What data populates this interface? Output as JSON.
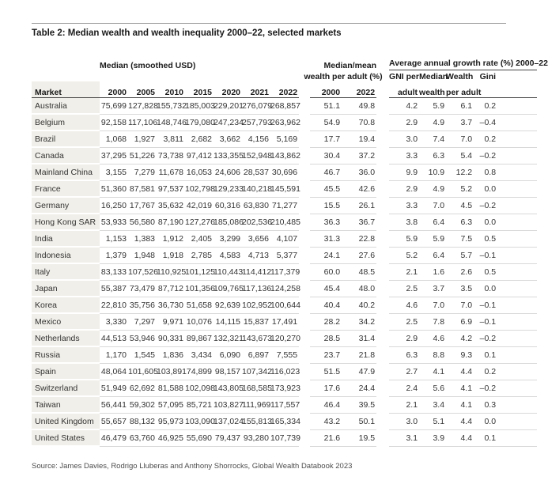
{
  "page": {
    "title": "Table 2: Median wealth and wealth inequality 2000–22, selected markets",
    "source": "Source: James Davies, Rodrigo Lluberas and Anthony Shorrocks, Global Wealth Databook 2023"
  },
  "table": {
    "group_headers": {
      "median_group": "Median (smoothed USD)",
      "median_mean_line1": "Median/mean",
      "median_mean_line2": "wealth per adult (%)",
      "growth_group": "Average annual growth rate (%) 2000–22"
    },
    "column_headers": {
      "market": "Market",
      "median_years": [
        "2000",
        "2005",
        "2010",
        "2015",
        "2020",
        "2021",
        "2022"
      ],
      "median_mean_years": [
        "2000",
        "2022"
      ],
      "growth_line1": [
        "GNI per",
        "Median",
        "Wealth",
        "Gini"
      ],
      "growth_line2": [
        "adult",
        "wealth",
        "per adult",
        ""
      ]
    },
    "rows": [
      {
        "market": "Australia",
        "median": [
          "75,699",
          "127,828",
          "155,732",
          "185,003",
          "229,201",
          "276,079",
          "268,857"
        ],
        "median_mean": [
          "51.1",
          "49.8"
        ],
        "growth": [
          "4.2",
          "5.9",
          "6.1",
          "0.2"
        ]
      },
      {
        "market": "Belgium",
        "median": [
          "92,158",
          "117,106",
          "148,746",
          "179,080",
          "247,234",
          "257,793",
          "263,962"
        ],
        "median_mean": [
          "54.9",
          "70.8"
        ],
        "growth": [
          "2.9",
          "4.9",
          "3.7",
          "–0.4"
        ]
      },
      {
        "market": "Brazil",
        "median": [
          "1,068",
          "1,927",
          "3,811",
          "2,682",
          "3,662",
          "4,156",
          "5,169"
        ],
        "median_mean": [
          "17.7",
          "19.4"
        ],
        "growth": [
          "3.0",
          "7.4",
          "7.0",
          "0.2"
        ]
      },
      {
        "market": "Canada",
        "median": [
          "37,295",
          "51,226",
          "73,738",
          "97,412",
          "133,355",
          "152,948",
          "143,862"
        ],
        "median_mean": [
          "30.4",
          "37.2"
        ],
        "growth": [
          "3.3",
          "6.3",
          "5.4",
          "–0.2"
        ]
      },
      {
        "market": "Mainland China",
        "median": [
          "3,155",
          "7,279",
          "11,678",
          "16,053",
          "24,606",
          "28,537",
          "30,696"
        ],
        "median_mean": [
          "46.7",
          "36.0"
        ],
        "growth": [
          "9.9",
          "10.9",
          "12.2",
          "0.8"
        ]
      },
      {
        "market": "France",
        "median": [
          "51,360",
          "87,581",
          "97,537",
          "102,798",
          "129,233",
          "140,218",
          "145,591"
        ],
        "median_mean": [
          "45.5",
          "42.6"
        ],
        "growth": [
          "2.9",
          "4.9",
          "5.2",
          "0.0"
        ]
      },
      {
        "market": "Germany",
        "median": [
          "16,250",
          "17,767",
          "35,632",
          "42,019",
          "60,316",
          "63,830",
          "71,277"
        ],
        "median_mean": [
          "15.5",
          "26.1"
        ],
        "growth": [
          "3.3",
          "7.0",
          "4.5",
          "–0.2"
        ]
      },
      {
        "market": "Hong Kong SAR",
        "median": [
          "53,933",
          "56,580",
          "87,190",
          "127,276",
          "185,086",
          "202,536",
          "210,485"
        ],
        "median_mean": [
          "36.3",
          "36.7"
        ],
        "growth": [
          "3.8",
          "6.4",
          "6.3",
          "0.0"
        ]
      },
      {
        "market": "India",
        "median": [
          "1,153",
          "1,383",
          "1,912",
          "2,405",
          "3,299",
          "3,656",
          "4,107"
        ],
        "median_mean": [
          "31.3",
          "22.8"
        ],
        "growth": [
          "5.9",
          "5.9",
          "7.5",
          "0.5"
        ]
      },
      {
        "market": "Indonesia",
        "median": [
          "1,379",
          "1,948",
          "1,918",
          "2,785",
          "4,583",
          "4,713",
          "5,377"
        ],
        "median_mean": [
          "24.1",
          "27.6"
        ],
        "growth": [
          "5.2",
          "6.4",
          "5.7",
          "–0.1"
        ]
      },
      {
        "market": "Italy",
        "median": [
          "83,133",
          "107,526",
          "110,925",
          "101,125",
          "110,443",
          "114,412",
          "117,379"
        ],
        "median_mean": [
          "60.0",
          "48.5"
        ],
        "growth": [
          "2.1",
          "1.6",
          "2.6",
          "0.5"
        ]
      },
      {
        "market": "Japan",
        "median": [
          "55,387",
          "73,479",
          "87,712",
          "101,356",
          "109,765",
          "117,136",
          "124,258"
        ],
        "median_mean": [
          "45.4",
          "48.0"
        ],
        "growth": [
          "2.5",
          "3.7",
          "3.5",
          "0.0"
        ]
      },
      {
        "market": "Korea",
        "median": [
          "22,810",
          "35,756",
          "36,730",
          "51,658",
          "92,639",
          "102,952",
          "100,644"
        ],
        "median_mean": [
          "40.4",
          "40.2"
        ],
        "growth": [
          "4.6",
          "7.0",
          "7.0",
          "–0.1"
        ]
      },
      {
        "market": "Mexico",
        "median": [
          "3,330",
          "7,297",
          "9,971",
          "10,076",
          "14,115",
          "15,837",
          "17,491"
        ],
        "median_mean": [
          "28.2",
          "34.2"
        ],
        "growth": [
          "2.5",
          "7.8",
          "6.9",
          "–0.1"
        ]
      },
      {
        "market": "Netherlands",
        "median": [
          "44,513",
          "53,946",
          "90,331",
          "89,867",
          "132,321",
          "143,673",
          "120,270"
        ],
        "median_mean": [
          "28.5",
          "31.4"
        ],
        "growth": [
          "2.9",
          "4.6",
          "4.2",
          "–0.2"
        ]
      },
      {
        "market": "Russia",
        "median": [
          "1,170",
          "1,545",
          "1,836",
          "3,434",
          "6,090",
          "6,897",
          "7,555"
        ],
        "median_mean": [
          "23.7",
          "21.8"
        ],
        "growth": [
          "6.3",
          "8.8",
          "9.3",
          "0.1"
        ]
      },
      {
        "market": "Spain",
        "median": [
          "48,064",
          "101,605",
          "103,891",
          "74,899",
          "98,157",
          "107,342",
          "116,023"
        ],
        "median_mean": [
          "51.5",
          "47.9"
        ],
        "growth": [
          "2.7",
          "4.1",
          "4.4",
          "0.2"
        ]
      },
      {
        "market": "Switzerland",
        "median": [
          "51,949",
          "62,692",
          "81,588",
          "102,098",
          "143,805",
          "168,585",
          "173,923"
        ],
        "median_mean": [
          "17.6",
          "24.4"
        ],
        "growth": [
          "2.4",
          "5.6",
          "4.1",
          "–0.2"
        ]
      },
      {
        "market": "Taiwan",
        "median": [
          "56,441",
          "59,302",
          "57,095",
          "85,721",
          "103,827",
          "111,969",
          "117,557"
        ],
        "median_mean": [
          "46.4",
          "39.5"
        ],
        "growth": [
          "2.1",
          "3.4",
          "4.1",
          "0.3"
        ]
      },
      {
        "market": "United Kingdom",
        "median": [
          "55,657",
          "88,132",
          "95,973",
          "103,090",
          "137,024",
          "155,813",
          "165,334"
        ],
        "median_mean": [
          "43.2",
          "50.1"
        ],
        "growth": [
          "3.0",
          "5.1",
          "4.4",
          "0.0"
        ]
      },
      {
        "market": "United States",
        "median": [
          "46,479",
          "63,760",
          "46,925",
          "55,690",
          "79,437",
          "93,280",
          "107,739"
        ],
        "median_mean": [
          "21.6",
          "19.5"
        ],
        "growth": [
          "3.1",
          "3.9",
          "4.4",
          "0.1"
        ]
      }
    ]
  }
}
